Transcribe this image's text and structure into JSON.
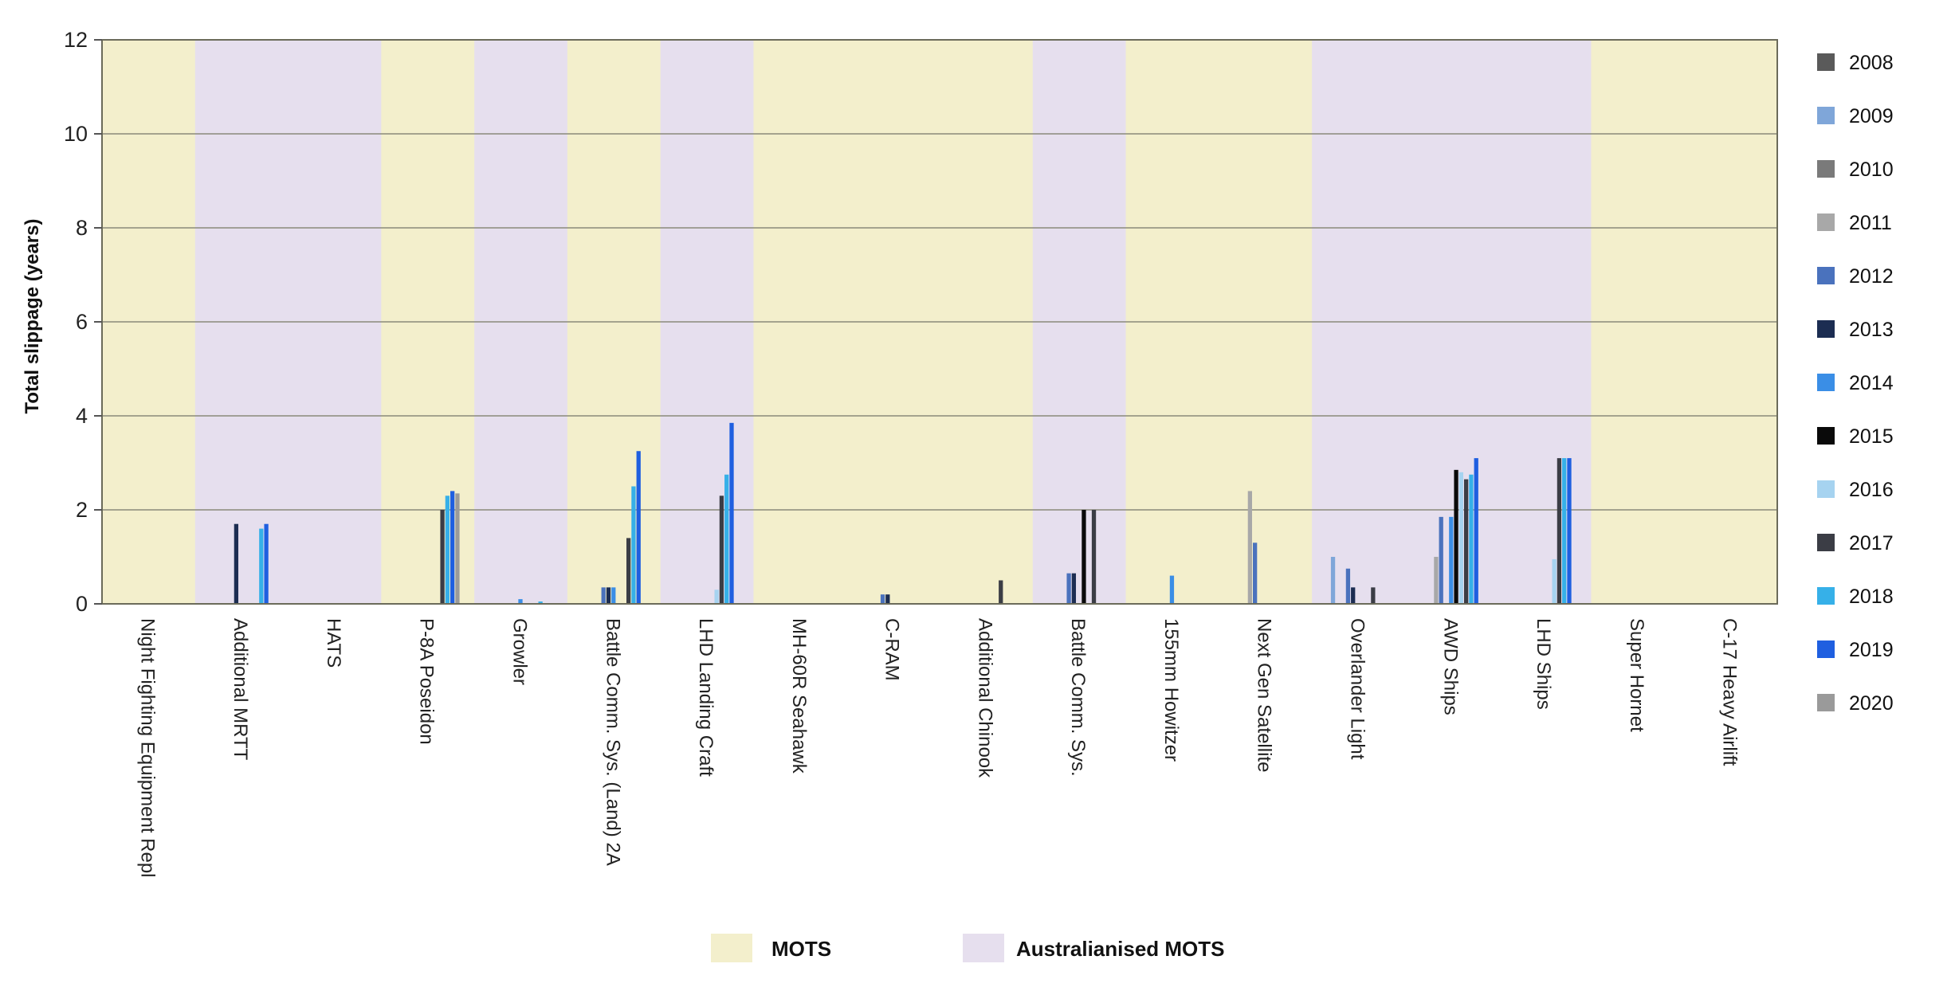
{
  "chart_data": {
    "type": "bar",
    "ylabel": "Total slippage (years)",
    "xlabel": "",
    "ylim": [
      0,
      12
    ],
    "yticks": [
      0,
      2,
      4,
      6,
      8,
      10,
      12
    ],
    "grid": true,
    "legend_position": "right",
    "categories": [
      "Night Fighting Equipment Repl",
      "Additional MRTT",
      "HATS",
      "P-8A Poseidon",
      "Growler",
      "Battle Comm. Sys. (Land) 2A",
      "LHD Landing Craft",
      "MH-60R Seahawk",
      "C-RAM",
      "Additional Chinook",
      "Battle Comm. Sys.",
      "155mm Howitzer",
      "Next Gen Satellite",
      "Overlander Light",
      "AWD Ships",
      "LHD Ships",
      "Super Hornet",
      "C-17 Heavy Airlift"
    ],
    "category_band": [
      "MOTS",
      "Australianised MOTS",
      "Australianised MOTS",
      "MOTS",
      "Australianised MOTS",
      "MOTS",
      "Australianised MOTS",
      "MOTS",
      "MOTS",
      "MOTS",
      "Australianised MOTS",
      "MOTS",
      "MOTS",
      "Australianised MOTS",
      "Australianised MOTS",
      "Australianised MOTS",
      "MOTS",
      "MOTS"
    ],
    "band_legend": [
      {
        "name": "MOTS",
        "color": "#f3efcc"
      },
      {
        "name": "Australianised MOTS",
        "color": "#e6dfee"
      }
    ],
    "series": [
      {
        "name": "2008",
        "color": "#5a5a5a",
        "values": [
          0,
          0,
          0,
          0,
          0,
          0,
          0,
          0,
          0,
          0,
          0,
          0,
          0,
          0,
          0,
          0,
          0,
          0
        ]
      },
      {
        "name": "2009",
        "color": "#7fa6d9",
        "values": [
          0,
          0,
          0,
          0,
          0,
          0,
          0,
          0,
          0,
          0,
          0,
          0,
          0,
          1.0,
          0,
          0,
          0,
          0
        ]
      },
      {
        "name": "2010",
        "color": "#7a7a7a",
        "values": [
          0,
          0,
          0,
          0,
          0,
          0,
          0,
          0,
          0,
          0,
          0,
          0,
          0,
          0,
          0,
          0,
          0,
          0
        ]
      },
      {
        "name": "2011",
        "color": "#a8a8a8",
        "values": [
          0,
          0,
          0,
          0,
          0,
          0,
          0,
          0,
          0,
          0,
          0,
          0,
          2.4,
          0,
          1.0,
          0,
          0,
          0
        ]
      },
      {
        "name": "2012",
        "color": "#4a72bd",
        "values": [
          0,
          0,
          0,
          0,
          0,
          0.35,
          0,
          0,
          0.2,
          0,
          0.65,
          0,
          1.3,
          0.75,
          1.85,
          0,
          0,
          0
        ]
      },
      {
        "name": "2013",
        "color": "#1c2d52",
        "values": [
          0,
          1.7,
          0,
          0,
          0,
          0.35,
          0,
          0,
          0.2,
          0,
          0.65,
          0,
          0,
          0.35,
          0,
          0,
          0,
          0
        ]
      },
      {
        "name": "2014",
        "color": "#3a8ee6",
        "values": [
          0,
          0,
          0,
          0,
          0.1,
          0.35,
          0,
          0,
          0,
          0,
          0,
          0.6,
          0,
          0,
          1.85,
          0,
          0,
          0
        ]
      },
      {
        "name": "2015",
        "color": "#0a0a0a",
        "values": [
          0,
          0,
          0,
          0,
          0,
          0,
          0,
          0,
          0,
          0,
          2.0,
          0,
          0,
          0,
          2.85,
          0,
          0,
          0
        ]
      },
      {
        "name": "2016",
        "color": "#a6d3f0",
        "values": [
          0,
          0,
          0,
          0,
          0,
          0,
          0.3,
          0,
          0,
          0,
          0,
          0,
          0,
          0,
          2.8,
          0.95,
          0,
          0
        ]
      },
      {
        "name": "2017",
        "color": "#3b3d45",
        "values": [
          0,
          0,
          0,
          2.0,
          0,
          1.4,
          2.3,
          0,
          0,
          0.5,
          2.0,
          0,
          0,
          0.35,
          2.65,
          3.1,
          0,
          0
        ]
      },
      {
        "name": "2018",
        "color": "#36b0e8",
        "values": [
          0,
          1.6,
          0,
          2.3,
          0.05,
          2.5,
          2.75,
          0,
          0,
          0,
          0,
          0,
          0,
          0,
          2.75,
          3.1,
          0,
          0
        ]
      },
      {
        "name": "2019",
        "color": "#1f5fe0",
        "values": [
          0,
          1.7,
          0,
          2.4,
          0,
          3.25,
          3.85,
          0,
          0,
          0,
          0,
          0,
          0,
          0,
          3.1,
          3.1,
          0,
          0
        ]
      },
      {
        "name": "2020",
        "color": "#9a9a9a",
        "values": [
          0,
          0,
          0,
          2.35,
          0,
          0,
          0,
          0,
          0,
          0,
          0,
          0,
          0,
          0,
          0,
          0,
          0,
          0
        ]
      }
    ]
  }
}
